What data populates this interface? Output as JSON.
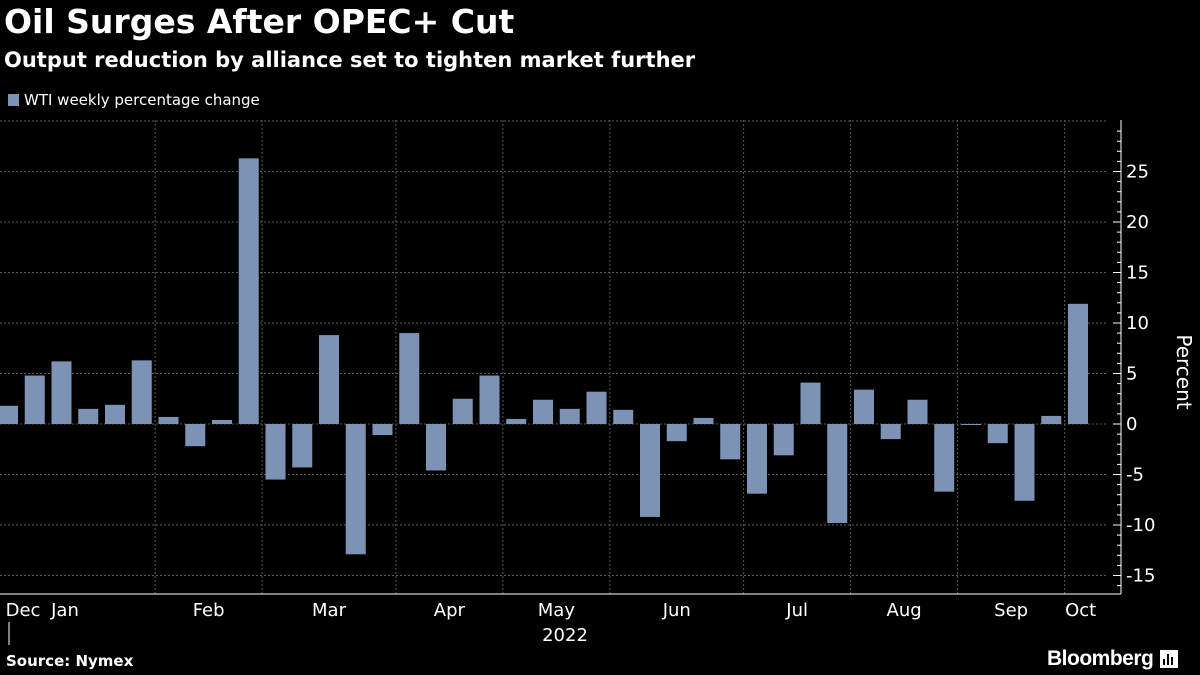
{
  "header": {
    "title": "Oil Surges After OPEC+ Cut",
    "subtitle": "Output reduction by alliance set to tighten market further"
  },
  "footer": {
    "source": "Source: Nymex",
    "brand": "Bloomberg"
  },
  "colors": {
    "background": "#000000",
    "bar": "#7c93b6",
    "grid": "#5a5a5a",
    "text": "#ffffff"
  },
  "chart_data": {
    "type": "bar",
    "title": "Oil Surges After OPEC+ Cut",
    "subtitle": "Output reduction by alliance set to tighten market further",
    "ylabel": "Percent",
    "xlabel": "2022",
    "ylim": [
      -16.5,
      30
    ],
    "yticks": [
      -15,
      -10,
      -5,
      0,
      5,
      10,
      15,
      20,
      25
    ],
    "axis_side": "right",
    "grid": true,
    "legend_position": "top-left",
    "month_ticks": [
      "Dec",
      "Jan",
      "Feb",
      "Mar",
      "Apr",
      "May",
      "Jun",
      "Jul",
      "Aug",
      "Sep",
      "Oct"
    ],
    "month_tick_weeks": [
      0,
      2,
      6,
      10,
      15,
      19,
      23,
      28,
      32,
      36,
      40
    ],
    "year_label": "2022",
    "series": [
      {
        "name": "WTI weekly percentage change",
        "values": [
          1.8,
          4.8,
          6.2,
          1.5,
          1.9,
          6.3,
          0.7,
          -2.2,
          0.4,
          26.3,
          -5.5,
          -4.3,
          8.8,
          -12.9,
          -1.1,
          9.0,
          -4.6,
          2.5,
          4.8,
          0.5,
          2.4,
          1.5,
          3.2,
          1.4,
          -9.2,
          -1.7,
          0.6,
          -3.5,
          -6.9,
          -3.1,
          4.1,
          -9.8,
          3.4,
          -1.5,
          2.4,
          -6.7,
          -0.1,
          -1.9,
          -7.6,
          0.8,
          11.9
        ]
      }
    ]
  }
}
